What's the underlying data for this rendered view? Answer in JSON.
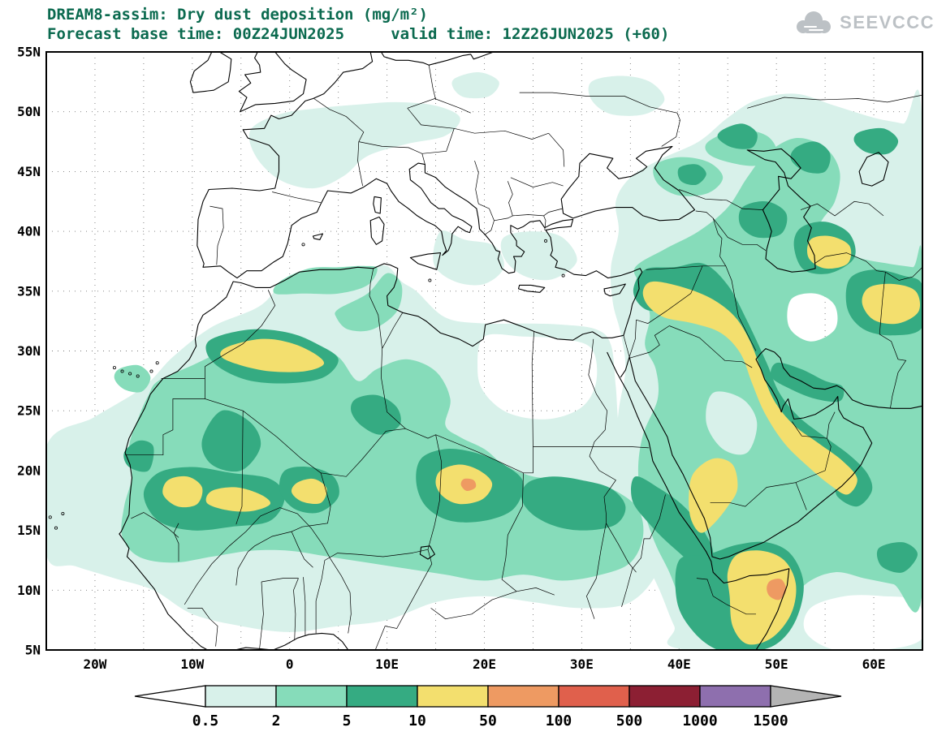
{
  "header": {
    "title_line1": "DREAM8-assim: Dry dust deposition (mg/m²)",
    "title_line2": "Forecast base time: 00Z24JUN2025     valid time: 12Z26JUN2025 (+60)",
    "logo_text": "SEEVCCC"
  },
  "axes": {
    "lat_labels": [
      "5N",
      "10N",
      "15N",
      "20N",
      "25N",
      "30N",
      "35N",
      "40N",
      "45N",
      "50N",
      "55N"
    ],
    "lat_values": [
      5,
      10,
      15,
      20,
      25,
      30,
      35,
      40,
      45,
      50,
      55
    ],
    "lon_labels": [
      "20W",
      "10W",
      "0",
      "10E",
      "20E",
      "30E",
      "40E",
      "50E",
      "60E"
    ],
    "lon_values": [
      -20,
      -10,
      0,
      10,
      20,
      30,
      40,
      50,
      60
    ],
    "lon_range": [
      -25,
      65
    ],
    "lat_range": [
      5,
      55
    ]
  },
  "colorbar": {
    "boundary_labels": [
      "0.5",
      "2",
      "5",
      "10",
      "50",
      "100",
      "500",
      "1000",
      "1500"
    ],
    "boundary_values": [
      0.5,
      2,
      5,
      10,
      50,
      100,
      500,
      1000,
      1500
    ],
    "segment_colors": [
      "#d8f1ea",
      "#86dcba",
      "#35ab82",
      "#f3df6e",
      "#ee9a62",
      "#e0604c",
      "#8c1f33",
      "#8e6fae"
    ],
    "below_color": "#ffffff",
    "above_color": "#b4b4b4"
  },
  "colors": {
    "title_text": "#0b6a4f",
    "axis_text": "#000000",
    "map_outline": "#000000",
    "grid_dots": "#777777",
    "logo_gray": "#bcc1c5"
  }
}
